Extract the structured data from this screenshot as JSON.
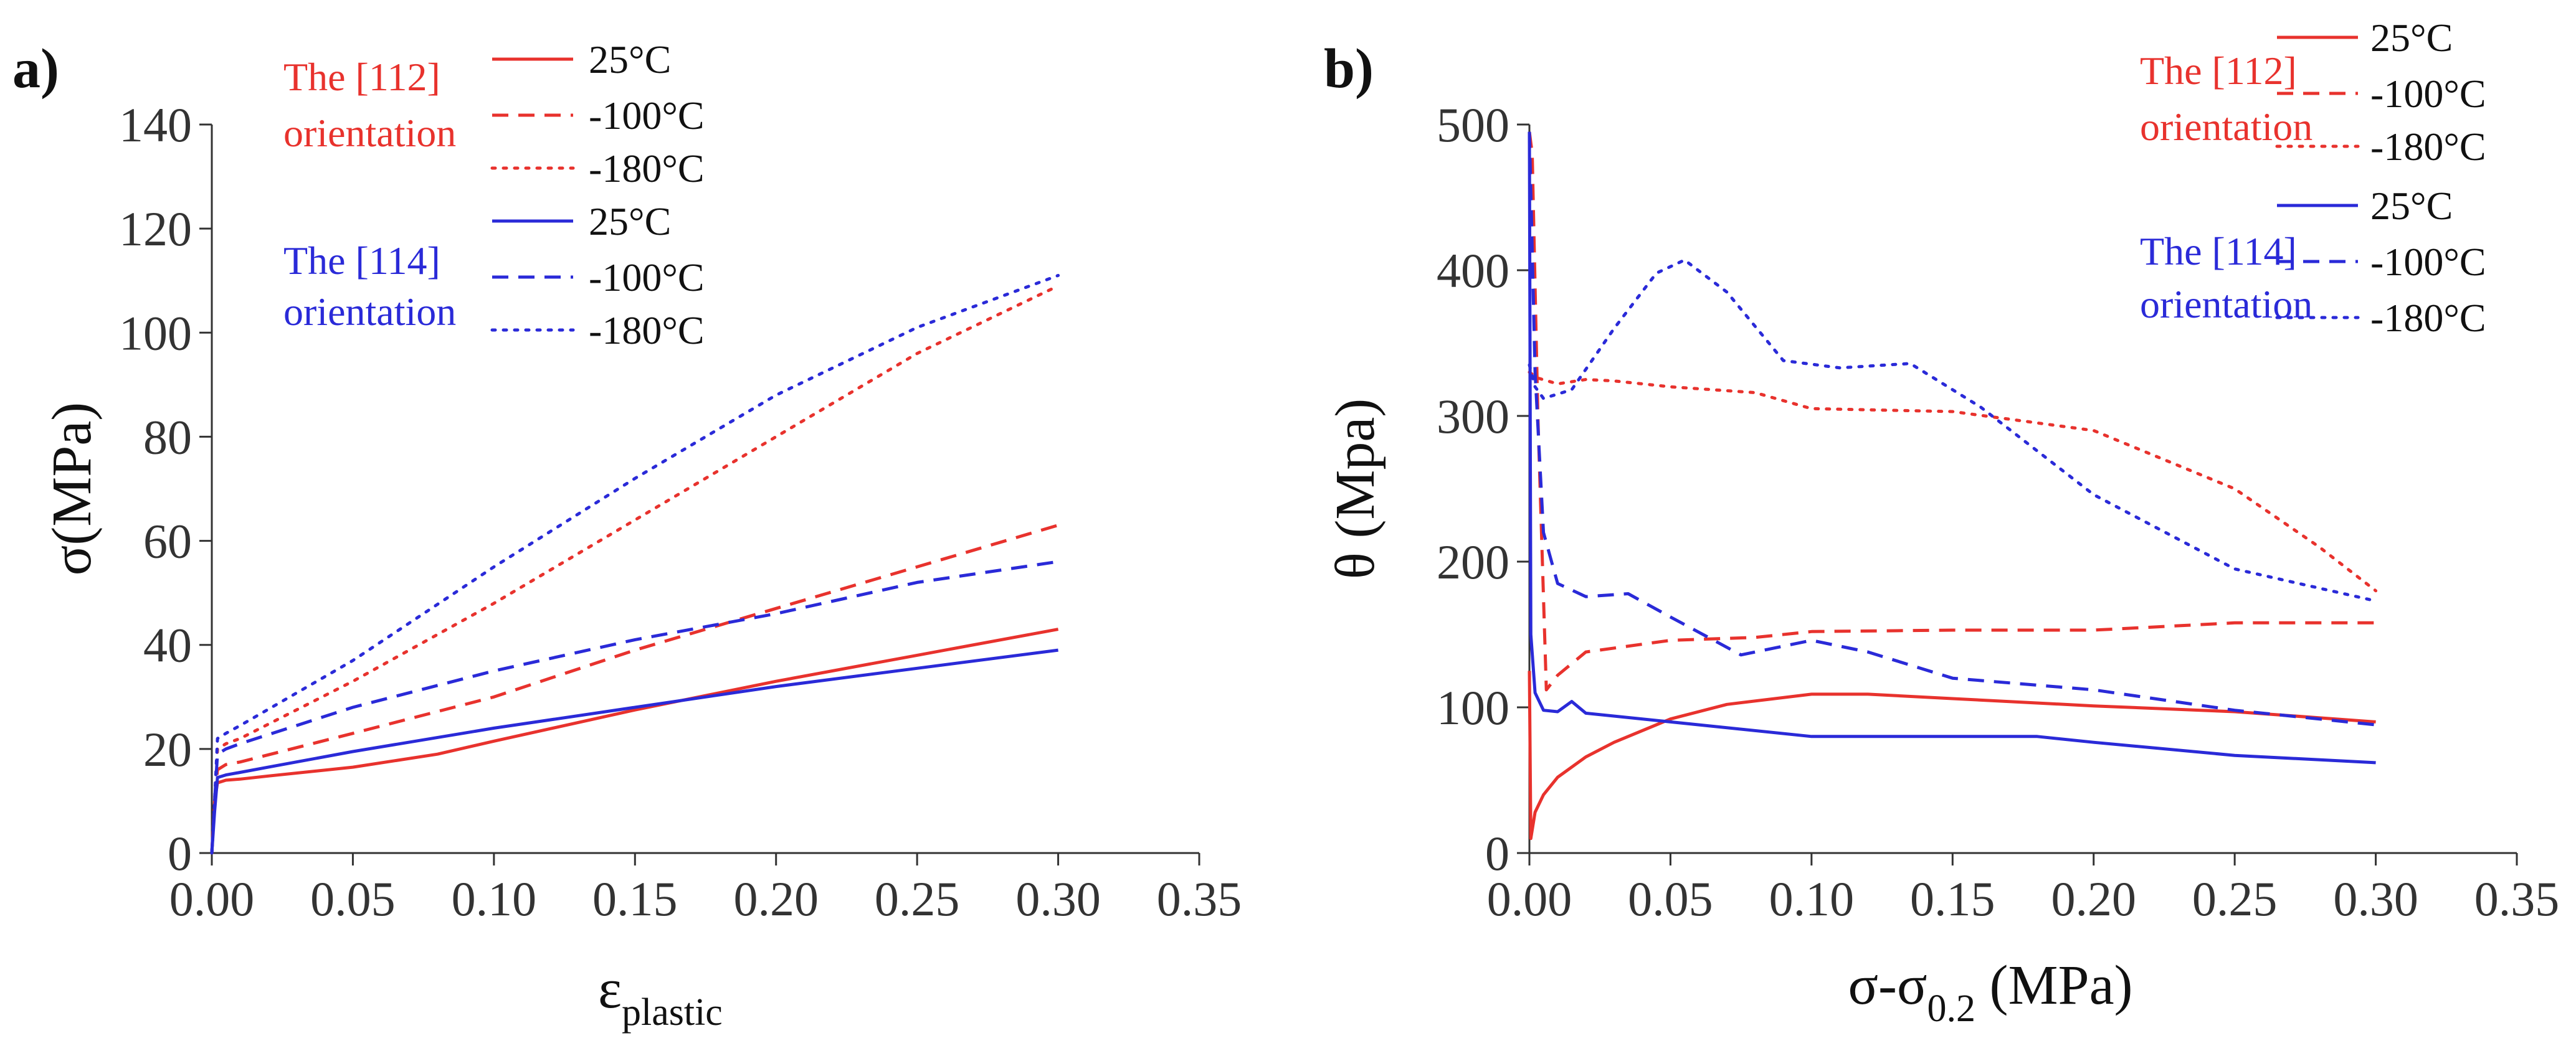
{
  "chart_data": [
    {
      "type": "line",
      "panel_label": "a)",
      "xlabel": "ε",
      "xlabel_sub": "plastic",
      "ylabel": "σ(MPa)",
      "xlim": [
        0,
        0.35
      ],
      "ylim": [
        0,
        140
      ],
      "xticks": [
        "0.00",
        "0.05",
        "0.10",
        "0.15",
        "0.20",
        "0.25",
        "0.30",
        "0.35"
      ],
      "yticks": [
        "0",
        "20",
        "40",
        "60",
        "80",
        "100",
        "120",
        "140"
      ],
      "legend": {
        "groups": [
          {
            "label_lines": [
              "The [112]",
              "orientation"
            ],
            "color": "#e8322d"
          },
          {
            "label_lines": [
              "The [114]",
              "orientation"
            ],
            "color": "#2a2ad8"
          }
        ],
        "entries": [
          {
            "label": "25°C",
            "style": "solid",
            "color": "#e8322d"
          },
          {
            "label": "-100°C",
            "style": "dashed",
            "color": "#e8322d"
          },
          {
            "label": "-180°C",
            "style": "dotted",
            "color": "#e8322d"
          },
          {
            "label": "25°C",
            "style": "solid",
            "color": "#2a2ad8"
          },
          {
            "label": "-100°C",
            "style": "dashed",
            "color": "#2a2ad8"
          },
          {
            "label": "-180°C",
            "style": "dotted",
            "color": "#2a2ad8"
          }
        ]
      },
      "series": [
        {
          "name": "[112] 25°C",
          "color": "#e8322d",
          "style": "solid",
          "x": [
            0,
            0.001,
            0.002,
            0.005,
            0.01,
            0.02,
            0.05,
            0.08,
            0.1,
            0.15,
            0.2,
            0.25,
            0.3
          ],
          "y": [
            0,
            10,
            13.5,
            14,
            14.2,
            14.8,
            16.5,
            19,
            21.5,
            27.5,
            33,
            38,
            43
          ]
        },
        {
          "name": "[112] -100°C",
          "color": "#e8322d",
          "style": "dashed",
          "x": [
            0,
            0.001,
            0.002,
            0.005,
            0.01,
            0.05,
            0.1,
            0.15,
            0.2,
            0.25,
            0.3
          ],
          "y": [
            0,
            10,
            16,
            17,
            17.5,
            23,
            30,
            39,
            47,
            55,
            63
          ]
        },
        {
          "name": "[112] -180°C",
          "color": "#e8322d",
          "style": "dotted",
          "x": [
            0,
            0.001,
            0.002,
            0.005,
            0.01,
            0.05,
            0.1,
            0.15,
            0.2,
            0.25,
            0.3
          ],
          "y": [
            0,
            10,
            20,
            21,
            22,
            33,
            48,
            64,
            80,
            96,
            109
          ]
        },
        {
          "name": "[114] 25°C",
          "color": "#2a2ad8",
          "style": "solid",
          "x": [
            0,
            0.001,
            0.002,
            0.005,
            0.01,
            0.02,
            0.05,
            0.1,
            0.15,
            0.2,
            0.25,
            0.3
          ],
          "y": [
            0,
            8,
            14.5,
            15,
            15.5,
            16.5,
            19.5,
            24,
            28,
            32,
            35.5,
            39
          ]
        },
        {
          "name": "[114] -100°C",
          "color": "#2a2ad8",
          "style": "dashed",
          "x": [
            0,
            0.001,
            0.002,
            0.005,
            0.01,
            0.05,
            0.1,
            0.15,
            0.2,
            0.25,
            0.3
          ],
          "y": [
            0,
            10,
            19,
            20,
            21,
            28,
            35,
            41,
            46,
            52,
            56
          ]
        },
        {
          "name": "[114] -180°C",
          "color": "#2a2ad8",
          "style": "dotted",
          "x": [
            0,
            0.001,
            0.002,
            0.005,
            0.01,
            0.05,
            0.1,
            0.15,
            0.2,
            0.25,
            0.3
          ],
          "y": [
            0,
            10,
            22,
            23,
            24.5,
            37,
            55,
            72,
            88,
            101,
            111
          ]
        }
      ]
    },
    {
      "type": "line",
      "panel_label": "b)",
      "xlabel": "σ-σ",
      "xlabel_sub": "0.2",
      "xlabel_suffix": " (MPa)",
      "ylabel": "θ (Mpa)",
      "xlim": [
        0,
        0.35
      ],
      "ylim": [
        0,
        500
      ],
      "xticks": [
        "0.00",
        "0.05",
        "0.10",
        "0.15",
        "0.20",
        "0.25",
        "0.30",
        "0.35"
      ],
      "yticks": [
        "0",
        "100",
        "200",
        "300",
        "400",
        "500"
      ],
      "legend": {
        "groups": [
          {
            "label_lines": [
              "The [112]",
              "orientation"
            ],
            "color": "#e8322d"
          },
          {
            "label_lines": [
              "The [114]",
              "orientation"
            ],
            "color": "#2a2ad8"
          }
        ],
        "entries": [
          {
            "label": "25°C",
            "style": "solid",
            "color": "#e8322d"
          },
          {
            "label": "-100°C",
            "style": "dashed",
            "color": "#e8322d"
          },
          {
            "label": "-180°C",
            "style": "dotted",
            "color": "#e8322d"
          },
          {
            "label": "25°C",
            "style": "solid",
            "color": "#2a2ad8"
          },
          {
            "label": "-100°C",
            "style": "dashed",
            "color": "#2a2ad8"
          },
          {
            "label": "-180°C",
            "style": "dotted",
            "color": "#2a2ad8"
          }
        ]
      },
      "series": [
        {
          "name": "[112] 25°C",
          "color": "#e8322d",
          "style": "solid",
          "x": [
            0,
            0.0005,
            0.002,
            0.005,
            0.01,
            0.02,
            0.03,
            0.05,
            0.07,
            0.1,
            0.12,
            0.15,
            0.2,
            0.25,
            0.3
          ],
          "y": [
            125,
            10,
            28,
            40,
            52,
            66,
            76,
            92,
            102,
            109,
            109,
            106,
            101,
            97,
            90
          ]
        },
        {
          "name": "[112] -100°C",
          "color": "#e8322d",
          "style": "dashed",
          "x": [
            0,
            0.001,
            0.003,
            0.006,
            0.01,
            0.02,
            0.05,
            0.08,
            0.1,
            0.15,
            0.2,
            0.25,
            0.3
          ],
          "y": [
            495,
            480,
            300,
            112,
            122,
            138,
            146,
            148,
            152,
            153,
            153,
            158,
            158
          ]
        },
        {
          "name": "[112] -180°C",
          "color": "#e8322d",
          "style": "dotted",
          "x": [
            0,
            0.003,
            0.01,
            0.02,
            0.03,
            0.05,
            0.08,
            0.1,
            0.15,
            0.2,
            0.25,
            0.28,
            0.3
          ],
          "y": [
            330,
            326,
            322,
            325,
            324,
            320,
            316,
            305,
            303,
            290,
            250,
            210,
            180
          ]
        },
        {
          "name": "[114] 25°C",
          "color": "#2a2ad8",
          "style": "solid",
          "x": [
            0,
            0.0005,
            0.002,
            0.005,
            0.01,
            0.015,
            0.02,
            0.05,
            0.1,
            0.15,
            0.18,
            0.2,
            0.25,
            0.3
          ],
          "y": [
            495,
            150,
            110,
            98,
            97,
            104,
            96,
            90,
            80,
            80,
            80,
            76,
            67,
            62
          ]
        },
        {
          "name": "[114] -100°C",
          "color": "#2a2ad8",
          "style": "dashed",
          "x": [
            0,
            0.002,
            0.005,
            0.01,
            0.02,
            0.035,
            0.05,
            0.075,
            0.1,
            0.12,
            0.15,
            0.2,
            0.25,
            0.3
          ],
          "y": [
            495,
            330,
            220,
            185,
            176,
            178,
            162,
            136,
            146,
            138,
            120,
            112,
            98,
            88
          ]
        },
        {
          "name": "[114] -180°C",
          "color": "#2a2ad8",
          "style": "dotted",
          "x": [
            0,
            0.002,
            0.005,
            0.015,
            0.03,
            0.045,
            0.055,
            0.07,
            0.09,
            0.11,
            0.135,
            0.16,
            0.2,
            0.25,
            0.3
          ],
          "y": [
            335,
            320,
            312,
            318,
            360,
            398,
            407,
            385,
            338,
            333,
            336,
            306,
            246,
            195,
            173
          ]
        }
      ]
    }
  ]
}
